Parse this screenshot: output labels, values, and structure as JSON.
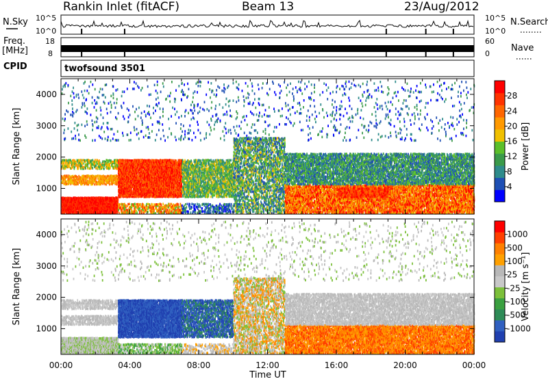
{
  "header": {
    "station": "Rankin Inlet (fitACF)",
    "beam": "Beam 13",
    "date": "23/Aug/2012"
  },
  "panels": {
    "nsky": {
      "label": "N.Sky",
      "ticks": [
        "10^5",
        "10^0"
      ]
    },
    "nsearch": {
      "label": "N.Search",
      "ticks": [
        "10^5",
        "10^0"
      ]
    },
    "freq": {
      "label": "Freq.",
      "unit": "[MHz]",
      "ticks": [
        "18",
        "8"
      ]
    },
    "nave": {
      "label": "Nave",
      "ticks": [
        "60",
        "0"
      ]
    },
    "cpid": {
      "label": "CPID",
      "value": "twofsound 3501"
    }
  },
  "chart_data": [
    {
      "type": "heatmap",
      "title": "",
      "xlabel": "",
      "ylabel": "Slant Range [km]",
      "x_ticks": [
        "00:00",
        "04:00",
        "08:00",
        "12:00",
        "16:00",
        "20:00",
        "00:00"
      ],
      "xlim": [
        0,
        24
      ],
      "y_ticks": [
        1000,
        2000,
        3000,
        4000
      ],
      "ylim": [
        180,
        4500
      ],
      "colorbar": {
        "label": "Power [dB]",
        "ticks": [
          "4",
          "8",
          "12",
          "16",
          "20",
          "24",
          "28"
        ],
        "colors": [
          "#0000ff",
          "#1e4fb4",
          "#2e8b8b",
          "#3a9a4a",
          "#5bbf2a",
          "#f0c000",
          "#ff9900",
          "#ff6600",
          "#ff3300",
          "#ff0000"
        ]
      }
    },
    {
      "type": "heatmap",
      "title": "",
      "xlabel": "Time UT",
      "ylabel": "Slant Range [km]",
      "x_ticks": [
        "00:00",
        "04:00",
        "08:00",
        "12:00",
        "16:00",
        "20:00",
        "00:00"
      ],
      "xlim": [
        0,
        24
      ],
      "y_ticks": [
        1000,
        2000,
        3000,
        4000
      ],
      "ylim": [
        180,
        4500
      ],
      "colorbar": {
        "label": "Velocity [m s⁻¹]",
        "ticks": [
          "1000",
          "500",
          "100",
          "25",
          "-25",
          "-100",
          "-500",
          "-1000"
        ],
        "colors": [
          "#2040b0",
          "#3060c0",
          "#2e8b57",
          "#3aa040",
          "#7cc03a",
          "#c8c8c8",
          "#b8b8b8",
          "#ffa000",
          "#ff8000",
          "#ff4000",
          "#ff0000"
        ]
      }
    }
  ]
}
